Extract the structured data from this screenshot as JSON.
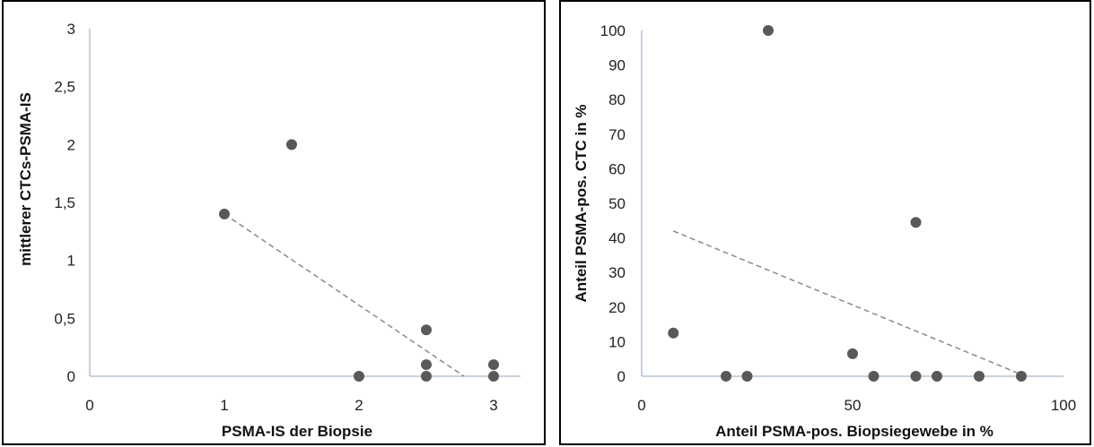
{
  "colors": {
    "point": "#595959",
    "axis": "#a6b7c9",
    "trend": "#8a8a8a",
    "text": "#222222"
  },
  "chart_data": [
    {
      "type": "scatter",
      "title": "",
      "xlabel": "PSMA-IS der Biopsie",
      "ylabel": "mittlerer CTCs-PSMA-IS",
      "xlim": [
        0,
        3.2
      ],
      "ylim": [
        0,
        3
      ],
      "xticks": [
        0,
        1,
        2,
        3
      ],
      "xtick_labels": [
        "0",
        "1",
        "2",
        "3"
      ],
      "yticks": [
        0,
        0.5,
        1,
        1.5,
        2,
        2.5,
        3
      ],
      "ytick_labels": [
        "0",
        "0,5",
        "1",
        "1,5",
        "2",
        "2,5",
        "3"
      ],
      "grid": false,
      "legend": "none",
      "points": [
        {
          "x": 1.0,
          "y": 1.4
        },
        {
          "x": 1.5,
          "y": 2.0
        },
        {
          "x": 2.0,
          "y": 0.0
        },
        {
          "x": 2.5,
          "y": 0.4
        },
        {
          "x": 2.5,
          "y": 0.1
        },
        {
          "x": 2.5,
          "y": 0.0
        },
        {
          "x": 3.0,
          "y": 0.1
        },
        {
          "x": 3.0,
          "y": 0.0
        }
      ],
      "trendline": {
        "style": "dashed",
        "x": [
          1.0,
          2.78
        ],
        "y": [
          1.4,
          0.0
        ]
      }
    },
    {
      "type": "scatter",
      "title": "",
      "xlabel": "Anteil PSMA-pos. Biopsiegewebe in %",
      "ylabel": "Anteil PSMA-pos. CTC in %",
      "xlim": [
        0,
        100
      ],
      "ylim": [
        0,
        100
      ],
      "xticks": [
        0,
        50,
        100
      ],
      "xtick_labels": [
        "0",
        "50",
        "100"
      ],
      "yticks": [
        0,
        10,
        20,
        30,
        40,
        50,
        60,
        70,
        80,
        90,
        100
      ],
      "ytick_labels": [
        "0",
        "10",
        "20",
        "30",
        "40",
        "50",
        "60",
        "70",
        "80",
        "90",
        "100"
      ],
      "grid": false,
      "legend": "none",
      "points": [
        {
          "x": 7.5,
          "y": 12.5
        },
        {
          "x": 20,
          "y": 0
        },
        {
          "x": 25,
          "y": 0
        },
        {
          "x": 30,
          "y": 100
        },
        {
          "x": 50,
          "y": 6.5
        },
        {
          "x": 55,
          "y": 0
        },
        {
          "x": 65,
          "y": 44.5
        },
        {
          "x": 65,
          "y": 0
        },
        {
          "x": 70,
          "y": 0
        },
        {
          "x": 80,
          "y": 0
        },
        {
          "x": 90,
          "y": 0
        }
      ],
      "trendline": {
        "style": "dashed",
        "x": [
          7.5,
          90
        ],
        "y": [
          42,
          0.5
        ]
      }
    }
  ]
}
